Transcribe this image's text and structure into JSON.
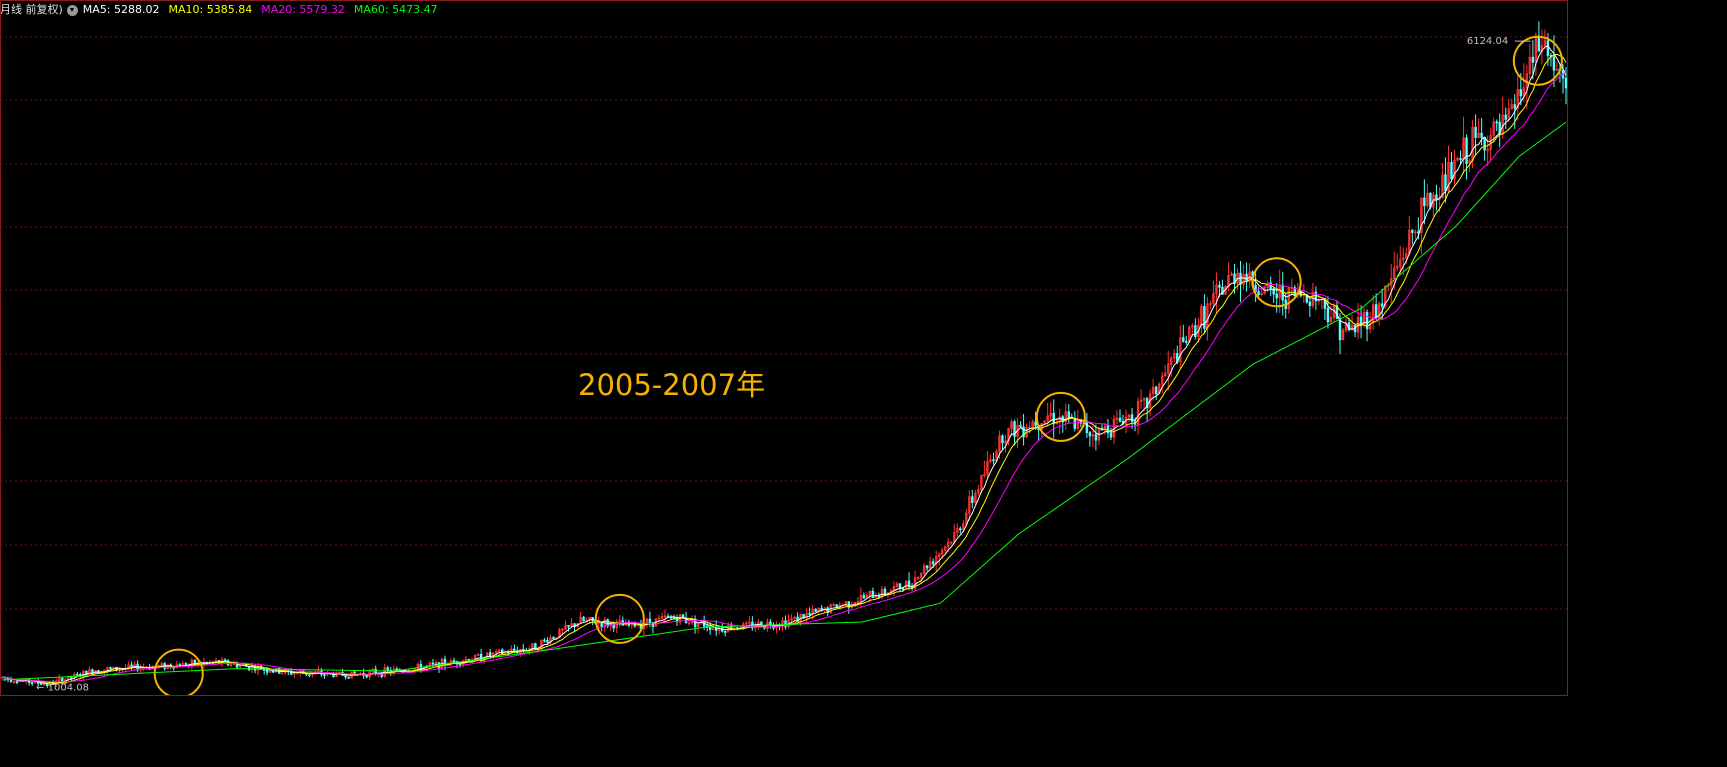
{
  "header": {
    "title_fragment": "月线 前复权)",
    "settings_icon": "chevron-down-circle-icon",
    "indicators": [
      {
        "label": "MA5: 5288.02",
        "color": "#ffffff"
      },
      {
        "label": "MA10: 5385.84",
        "color": "#ffff00"
      },
      {
        "label": "MA20: 5579.32",
        "color": "#ff00ff"
      },
      {
        "label": "MA60: 5473.47",
        "color": "#00ff00"
      }
    ]
  },
  "annotation": {
    "text": "2005-2007年",
    "color": "#f5b300"
  },
  "chart_data": {
    "type": "candlestick",
    "ylim": [
      960,
      6300
    ],
    "grid": "horizontal dashed",
    "grid_color": "#7a1010",
    "up_color": "#ff3232",
    "down_color": "#54ffff",
    "max_label": "6124.04",
    "min_label": "1004.08",
    "trend": [
      [
        0,
        1060
      ],
      [
        0.03,
        1004
      ],
      [
        0.06,
        1120
      ],
      [
        0.1,
        1150
      ],
      [
        0.14,
        1180
      ],
      [
        0.18,
        1100
      ],
      [
        0.22,
        1080
      ],
      [
        0.26,
        1120
      ],
      [
        0.3,
        1210
      ],
      [
        0.34,
        1300
      ],
      [
        0.37,
        1510
      ],
      [
        0.4,
        1470
      ],
      [
        0.43,
        1540
      ],
      [
        0.46,
        1450
      ],
      [
        0.5,
        1500
      ],
      [
        0.54,
        1650
      ],
      [
        0.58,
        1800
      ],
      [
        0.61,
        2200
      ],
      [
        0.64,
        3000
      ],
      [
        0.67,
        3150
      ],
      [
        0.7,
        3000
      ],
      [
        0.73,
        3200
      ],
      [
        0.76,
        3800
      ],
      [
        0.79,
        4300
      ],
      [
        0.81,
        4100
      ],
      [
        0.84,
        4100
      ],
      [
        0.86,
        3800
      ],
      [
        0.88,
        4000
      ],
      [
        0.91,
        4800
      ],
      [
        0.94,
        5300
      ],
      [
        0.96,
        5400
      ],
      [
        0.985,
        6124
      ],
      [
        1.0,
        5700
      ]
    ],
    "ma60_points": [
      [
        0,
        1040
      ],
      [
        0.15,
        1130
      ],
      [
        0.25,
        1110
      ],
      [
        0.35,
        1280
      ],
      [
        0.45,
        1460
      ],
      [
        0.55,
        1500
      ],
      [
        0.6,
        1650
      ],
      [
        0.65,
        2200
      ],
      [
        0.72,
        2800
      ],
      [
        0.8,
        3550
      ],
      [
        0.87,
        4000
      ],
      [
        0.93,
        4650
      ],
      [
        0.97,
        5200
      ],
      [
        1.0,
        5473
      ]
    ],
    "highlight_circles": [
      {
        "index_fraction": 0.113,
        "value": 1090
      },
      {
        "index_fraction": 0.395,
        "value": 1525
      },
      {
        "index_fraction": 0.677,
        "value": 3130
      },
      {
        "index_fraction": 0.815,
        "value": 4200
      },
      {
        "index_fraction": 0.982,
        "value": 5960
      }
    ]
  }
}
